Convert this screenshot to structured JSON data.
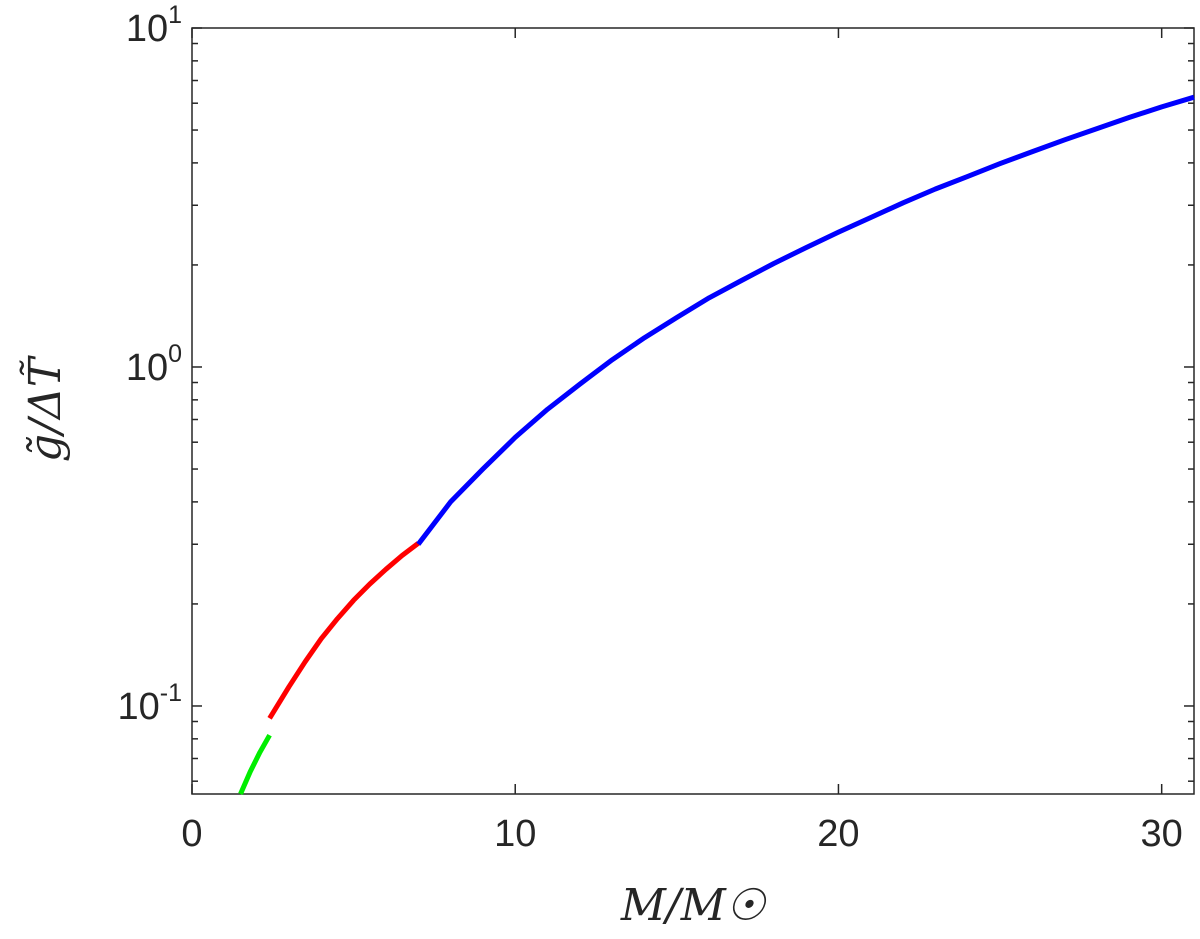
{
  "chart_data": {
    "type": "line",
    "title": "",
    "xlabel": "M/M☉",
    "ylabel": "g̃/ΔT̃",
    "xlim": [
      0,
      31
    ],
    "ylim": [
      0.055,
      10
    ],
    "yscale": "log",
    "grid": false,
    "legend": "none",
    "x_ticks": [
      {
        "value": 0,
        "label": "0"
      },
      {
        "value": 10,
        "label": "10"
      },
      {
        "value": 20,
        "label": "20"
      },
      {
        "value": 30,
        "label": "30"
      }
    ],
    "y_ticks": [
      {
        "value": 0.1,
        "base": "10",
        "exp": "-1"
      },
      {
        "value": 1,
        "base": "10",
        "exp": "0"
      },
      {
        "value": 10,
        "base": "10",
        "exp": "1"
      }
    ],
    "series": [
      {
        "color": "#00ee00",
        "x": [
          1.5,
          1.8,
          2.1,
          2.4
        ],
        "y": [
          0.055,
          0.064,
          0.073,
          0.082
        ]
      },
      {
        "color": "#ff0000",
        "x": [
          2.4,
          3.0,
          3.5,
          4.0,
          4.5,
          5.0,
          5.5,
          6.0,
          6.5,
          7.0
        ],
        "y": [
          0.092,
          0.114,
          0.135,
          0.158,
          0.181,
          0.205,
          0.229,
          0.253,
          0.278,
          0.302
        ]
      },
      {
        "color": "#0000ff",
        "x": [
          7.0,
          8.0,
          9.0,
          10.0,
          11.0,
          12.0,
          13.0,
          14.0,
          15.0,
          16.0,
          17.0,
          18.0,
          19.0,
          20.0,
          21.0,
          22.0,
          23.0,
          24.0,
          25.0,
          26.0,
          27.0,
          28.0,
          29.0,
          30.0,
          31.0
        ],
        "y": [
          0.3,
          0.4,
          0.5,
          0.62,
          0.75,
          0.89,
          1.05,
          1.22,
          1.4,
          1.6,
          1.8,
          2.02,
          2.25,
          2.5,
          2.76,
          3.05,
          3.35,
          3.65,
          3.98,
          4.32,
          4.68,
          5.05,
          5.45,
          5.85,
          6.25
        ]
      }
    ]
  }
}
